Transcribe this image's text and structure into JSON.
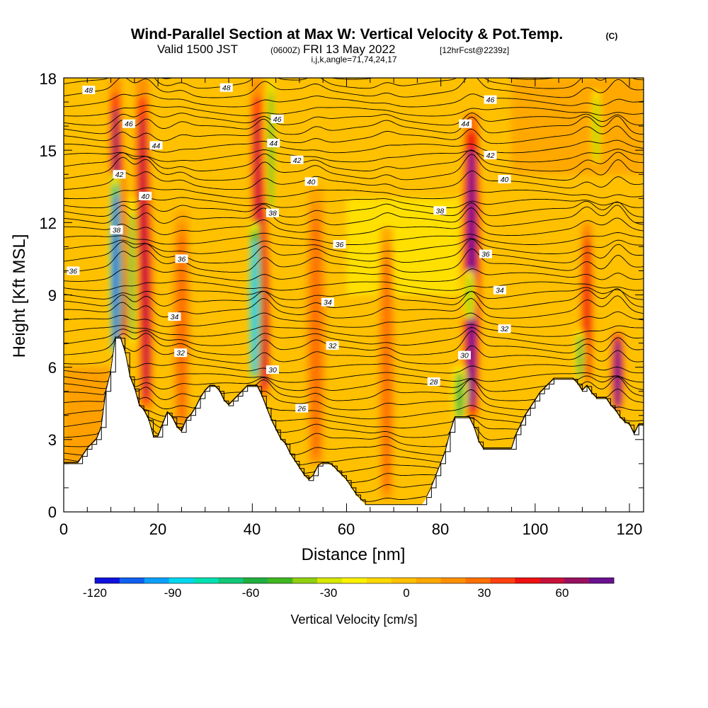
{
  "chart_data": {
    "type": "contour",
    "title": "Wind-Parallel Section at Max W: Vertical Velocity & Pot.Temp.",
    "title_mark": "(C)",
    "subtitle_main": "Valid 1500 JST",
    "subtitle_utc": "(0600Z)",
    "subtitle_date": "FRI 13 May 2022",
    "subtitle_fcst": "[12hrFcst@2239z]",
    "subtitle2": "i,j,k,angle=71,74,24,17",
    "xlabel": "Distance [nm]",
    "ylabel": "Height [Kft MSL]",
    "xlim": [
      0,
      123
    ],
    "ylim": [
      0,
      18
    ],
    "x_ticks": [
      0,
      20,
      40,
      60,
      80,
      100,
      120
    ],
    "x_tick_labels": [
      "0",
      "20",
      "40",
      "60",
      "80",
      "100",
      "120"
    ],
    "y_ticks": [
      0,
      3,
      6,
      9,
      12,
      15,
      18
    ],
    "y_tick_labels": [
      "0",
      "3",
      "6",
      "9",
      "12",
      "15",
      "18"
    ],
    "colorbar": {
      "label": "Vertical Velocity [cm/s]",
      "range": [
        -120,
        80
      ],
      "tick_values": [
        -120,
        -90,
        -60,
        -30,
        0,
        30,
        60
      ],
      "tick_labels": [
        "-120",
        "-90",
        "-60",
        "-30",
        "0",
        "30",
        "60"
      ],
      "colors": [
        "#1010e0",
        "#1060f0",
        "#0aa0ff",
        "#00d8f0",
        "#00e0b0",
        "#10c878",
        "#20b040",
        "#40b820",
        "#90d010",
        "#d8e800",
        "#fff000",
        "#ffd800",
        "#ffc000",
        "#ffa800",
        "#ff9000",
        "#ff7000",
        "#ff4010",
        "#ee1010",
        "#c8103a",
        "#981060",
        "#6a1090"
      ]
    },
    "terrain_kft": [
      [
        0,
        2
      ],
      [
        3,
        2
      ],
      [
        4,
        2.3
      ],
      [
        5,
        2.6
      ],
      [
        6,
        2.8
      ],
      [
        7,
        3
      ],
      [
        8,
        3.5
      ],
      [
        9,
        5
      ],
      [
        10,
        5.8
      ],
      [
        11,
        7.2
      ],
      [
        12,
        7.2
      ],
      [
        13,
        6.6
      ],
      [
        14,
        5.6
      ],
      [
        15,
        5.1
      ],
      [
        16,
        4.4
      ],
      [
        17,
        4.2
      ],
      [
        18,
        3.8
      ],
      [
        19,
        3.1
      ],
      [
        20,
        3.1
      ],
      [
        21,
        3.6
      ],
      [
        22,
        4.1
      ],
      [
        23,
        3.9
      ],
      [
        24,
        3.5
      ],
      [
        25,
        3.3
      ],
      [
        26,
        3.8
      ],
      [
        27,
        4.0
      ],
      [
        28,
        4.3
      ],
      [
        29,
        4.7
      ],
      [
        30,
        5.0
      ],
      [
        31,
        5.2
      ],
      [
        32,
        5.2
      ],
      [
        33,
        5.0
      ],
      [
        34,
        4.6
      ],
      [
        35,
        4.4
      ],
      [
        36,
        4.6
      ],
      [
        37,
        4.8
      ],
      [
        38,
        5.0
      ],
      [
        39,
        5.2
      ],
      [
        40,
        5.2
      ],
      [
        41,
        5.2
      ],
      [
        42,
        4.8
      ],
      [
        43,
        4.3
      ],
      [
        44,
        3.8
      ],
      [
        45,
        3.4
      ],
      [
        46,
        3.0
      ],
      [
        47,
        2.8
      ],
      [
        48,
        2.4
      ],
      [
        49,
        2.1
      ],
      [
        50,
        1.8
      ],
      [
        51,
        1.5
      ],
      [
        52,
        1.3
      ],
      [
        53,
        1.5
      ],
      [
        54,
        1.9
      ],
      [
        55,
        2.0
      ],
      [
        56,
        2.0
      ],
      [
        57,
        1.9
      ],
      [
        58,
        1.7
      ],
      [
        59,
        1.5
      ],
      [
        60,
        1.3
      ],
      [
        61,
        1.0
      ],
      [
        62,
        0.7
      ],
      [
        63,
        0.5
      ],
      [
        64,
        0.3
      ],
      [
        65,
        0.3
      ],
      [
        66,
        0.3
      ],
      [
        67,
        0.3
      ],
      [
        68,
        0.3
      ],
      [
        69,
        0.3
      ],
      [
        70,
        0.3
      ],
      [
        71,
        0.3
      ],
      [
        72,
        0.3
      ],
      [
        73,
        0.3
      ],
      [
        74,
        0.3
      ],
      [
        75,
        0.3
      ],
      [
        76,
        0.3
      ],
      [
        77,
        0.6
      ],
      [
        78,
        1.0
      ],
      [
        79,
        1.5
      ],
      [
        80,
        2.0
      ],
      [
        81,
        2.5
      ],
      [
        82,
        3.3
      ],
      [
        83,
        3.9
      ],
      [
        84,
        3.9
      ],
      [
        85,
        3.9
      ],
      [
        86,
        3.9
      ],
      [
        87,
        3.5
      ],
      [
        88,
        2.9
      ],
      [
        89,
        2.6
      ],
      [
        90,
        2.6
      ],
      [
        91,
        2.6
      ],
      [
        92,
        2.6
      ],
      [
        93,
        2.6
      ],
      [
        94,
        2.6
      ],
      [
        95,
        2.6
      ],
      [
        96,
        3.2
      ],
      [
        97,
        3.6
      ],
      [
        98,
        4.0
      ],
      [
        99,
        4.3
      ],
      [
        100,
        4.6
      ],
      [
        101,
        4.9
      ],
      [
        102,
        5.1
      ],
      [
        103,
        5.3
      ],
      [
        104,
        5.5
      ],
      [
        105,
        5.5
      ],
      [
        106,
        5.5
      ],
      [
        107,
        5.5
      ],
      [
        108,
        5.5
      ],
      [
        109,
        5.3
      ],
      [
        110,
        5.0
      ],
      [
        111,
        5.2
      ],
      [
        112,
        4.9
      ],
      [
        113,
        4.7
      ],
      [
        114,
        4.7
      ],
      [
        115,
        4.7
      ],
      [
        116,
        4.4
      ],
      [
        117,
        4.2
      ],
      [
        118,
        3.9
      ],
      [
        119,
        3.7
      ],
      [
        120,
        3.6
      ],
      [
        121,
        3.2
      ],
      [
        122,
        3.6
      ],
      [
        123,
        3.6
      ]
    ],
    "isentrope_labels": [
      {
        "text": "48",
        "x": 5.3,
        "y": 17.5
      },
      {
        "text": "46",
        "x": 13.8,
        "y": 16.1
      },
      {
        "text": "44",
        "x": 19.6,
        "y": 15.2
      },
      {
        "text": "42",
        "x": 11.8,
        "y": 14.0
      },
      {
        "text": "40",
        "x": 17.3,
        "y": 13.1
      },
      {
        "text": "38",
        "x": 11.2,
        "y": 11.7
      },
      {
        "text": "36",
        "x": 2.0,
        "y": 10.0
      },
      {
        "text": "36",
        "x": 25.0,
        "y": 10.5
      },
      {
        "text": "34",
        "x": 23.5,
        "y": 8.1
      },
      {
        "text": "32",
        "x": 24.8,
        "y": 6.6
      },
      {
        "text": "48",
        "x": 34.5,
        "y": 17.6
      },
      {
        "text": "46",
        "x": 45.3,
        "y": 16.3
      },
      {
        "text": "44",
        "x": 44.5,
        "y": 15.3
      },
      {
        "text": "42",
        "x": 49.5,
        "y": 14.6
      },
      {
        "text": "40",
        "x": 52.5,
        "y": 13.7
      },
      {
        "text": "38",
        "x": 44.3,
        "y": 12.4
      },
      {
        "text": "36",
        "x": 58.5,
        "y": 11.1
      },
      {
        "text": "34",
        "x": 56.0,
        "y": 8.7
      },
      {
        "text": "32",
        "x": 57.0,
        "y": 6.9
      },
      {
        "text": "30",
        "x": 44.3,
        "y": 5.9
      },
      {
        "text": "28",
        "x": 78.5,
        "y": 5.4
      },
      {
        "text": "26",
        "x": 50.5,
        "y": 4.3
      },
      {
        "text": "46",
        "x": 90.5,
        "y": 17.1
      },
      {
        "text": "44",
        "x": 85.2,
        "y": 16.1
      },
      {
        "text": "42",
        "x": 90.5,
        "y": 14.8
      },
      {
        "text": "40",
        "x": 93.5,
        "y": 13.8
      },
      {
        "text": "38",
        "x": 79.8,
        "y": 12.5
      },
      {
        "text": "36",
        "x": 89.5,
        "y": 10.7
      },
      {
        "text": "34",
        "x": 92.5,
        "y": 9.2
      },
      {
        "text": "32",
        "x": 93.5,
        "y": 7.6
      },
      {
        "text": "30",
        "x": 85.0,
        "y": 6.5
      }
    ],
    "updrafts": [
      {
        "x": 12.5,
        "y_top": 18.0,
        "w": 65,
        "x_drift": -1.5,
        "width": 1.2
      },
      {
        "x": 17.5,
        "y_top": 18.0,
        "w": 60,
        "x_drift": -0.8,
        "width": 1.3
      },
      {
        "x": 25.0,
        "y_top": 12.5,
        "w": 25,
        "x_drift": 0,
        "width": 1.5
      },
      {
        "x": 42.5,
        "y_top": 18.0,
        "w": 60,
        "x_drift": -1.5,
        "width": 1.2
      },
      {
        "x": 53.5,
        "y_top": 13.5,
        "w": 30,
        "x_drift": 0,
        "width": 1.6
      },
      {
        "x": 68.5,
        "y_top": 11.8,
        "w": 25,
        "x_drift": 0,
        "width": 1.3
      },
      {
        "x": 86.5,
        "y_top": 16.5,
        "w": 80,
        "x_drift": 0,
        "width": 1.4
      },
      {
        "x": 111.0,
        "y_top": 12.0,
        "w": 50,
        "x_drift": 0,
        "width": 1.0
      },
      {
        "x": 117.5,
        "y_top": 7.5,
        "w": 72,
        "x_drift": 0,
        "width": 1.1
      }
    ],
    "downdrafts": [
      {
        "x": 11.0,
        "y_base": 6.5,
        "y_top": 14.0,
        "w": -110,
        "width": 1.0
      },
      {
        "x": 14.5,
        "y_base": 7.0,
        "y_top": 13.0,
        "w": -55,
        "width": 0.7
      },
      {
        "x": 40.5,
        "y_base": 5.5,
        "y_top": 12.0,
        "w": -90,
        "width": 1.0
      },
      {
        "x": 44.0,
        "y_base": 12.5,
        "y_top": 18.0,
        "w": -45,
        "width": 0.7
      },
      {
        "x": 84.0,
        "y_base": 3.8,
        "y_top": 6.0,
        "w": -55,
        "width": 1.2
      },
      {
        "x": 86.0,
        "y_base": 8.0,
        "y_top": 10.0,
        "w": -35,
        "width": 1.0
      },
      {
        "x": 109.5,
        "y_base": 5.5,
        "y_top": 7.5,
        "w": -55,
        "width": 0.8
      },
      {
        "x": 113.0,
        "y_base": 14.5,
        "y_top": 17.5,
        "w": -35,
        "width": 0.7
      }
    ]
  }
}
